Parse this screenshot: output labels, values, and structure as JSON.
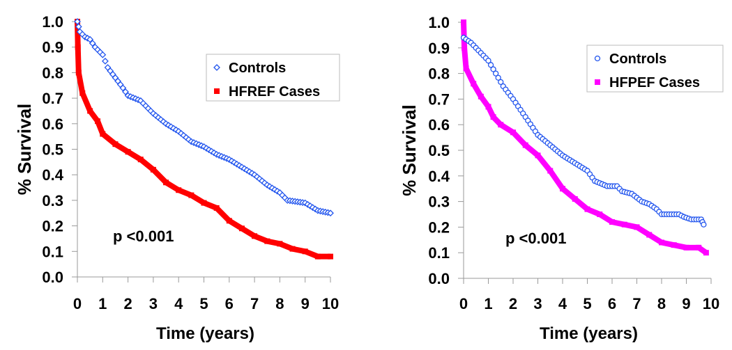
{
  "chart_data": [
    {
      "type": "line",
      "title": "",
      "xlabel": "Time (years)",
      "ylabel": "% Survival",
      "xlim": [
        0,
        10
      ],
      "ylim": [
        0,
        1.0
      ],
      "xticks": [
        "0",
        "1",
        "2",
        "3",
        "4",
        "5",
        "6",
        "7",
        "8",
        "9",
        "10"
      ],
      "yticks": [
        "0.0",
        "0.1",
        "0.2",
        "0.3",
        "0.4",
        "0.5",
        "0.6",
        "0.7",
        "0.8",
        "0.9",
        "1.0"
      ],
      "grid": false,
      "legend_position": "top-right",
      "annotation": "p <0.001",
      "series": [
        {
          "name": "Controls",
          "marker": "diamond-open",
          "color": "#2255ee",
          "x": [
            0,
            0.1,
            0.3,
            0.5,
            0.7,
            1,
            1.2,
            1.5,
            1.8,
            2,
            2.5,
            3,
            3.5,
            4,
            4.5,
            5,
            5.5,
            6,
            6.5,
            7,
            7.5,
            8,
            8.3,
            9,
            9.5,
            10
          ],
          "y": [
            1.0,
            0.96,
            0.94,
            0.93,
            0.9,
            0.87,
            0.82,
            0.78,
            0.74,
            0.71,
            0.69,
            0.64,
            0.6,
            0.57,
            0.53,
            0.51,
            0.48,
            0.46,
            0.43,
            0.4,
            0.36,
            0.33,
            0.3,
            0.29,
            0.26,
            0.25
          ]
        },
        {
          "name": "HFREF Cases",
          "marker": "square-filled",
          "color": "#ff0000",
          "x": [
            0,
            0.02,
            0.05,
            0.2,
            0.5,
            0.8,
            1,
            1.5,
            2,
            2.5,
            3,
            3.5,
            4,
            4.5,
            5,
            5.5,
            6,
            6.5,
            7,
            7.5,
            8,
            8.5,
            9,
            9.5,
            10
          ],
          "y": [
            1.0,
            0.9,
            0.8,
            0.72,
            0.65,
            0.61,
            0.56,
            0.52,
            0.49,
            0.46,
            0.42,
            0.37,
            0.34,
            0.32,
            0.29,
            0.27,
            0.22,
            0.19,
            0.16,
            0.14,
            0.13,
            0.11,
            0.1,
            0.08,
            0.08
          ]
        }
      ]
    },
    {
      "type": "line",
      "title": "",
      "xlabel": "Time (years)",
      "ylabel": "% Survival",
      "xlim": [
        0,
        10
      ],
      "ylim": [
        0,
        1.0
      ],
      "xticks": [
        "0",
        "1",
        "2",
        "3",
        "4",
        "5",
        "6",
        "7",
        "8",
        "9",
        "10"
      ],
      "yticks": [
        "0.0",
        "0.1",
        "0.2",
        "0.3",
        "0.4",
        "0.5",
        "0.6",
        "0.7",
        "0.8",
        "0.9",
        "1.0"
      ],
      "grid": false,
      "legend_position": "top-right",
      "annotation": "p <0.001",
      "series": [
        {
          "name": "Controls",
          "marker": "circle-open",
          "color": "#2255ee",
          "x": [
            0,
            0.3,
            0.6,
            1,
            1.3,
            1.6,
            2,
            2.5,
            3,
            3.5,
            4,
            4.5,
            5,
            5.3,
            5.8,
            6.2,
            6.4,
            6.8,
            7.2,
            7.5,
            7.8,
            8,
            8.7,
            8.9,
            9.2,
            9.6,
            9.7
          ],
          "y": [
            0.94,
            0.92,
            0.89,
            0.85,
            0.8,
            0.75,
            0.7,
            0.63,
            0.56,
            0.52,
            0.48,
            0.45,
            0.42,
            0.38,
            0.36,
            0.36,
            0.34,
            0.33,
            0.3,
            0.29,
            0.27,
            0.25,
            0.25,
            0.24,
            0.23,
            0.23,
            0.21
          ]
        },
        {
          "name": "HFPEF Cases",
          "marker": "square-filled",
          "color": "#ff00ff",
          "x": [
            0,
            0.03,
            0.1,
            0.4,
            0.7,
            1,
            1.2,
            1.5,
            2,
            2.5,
            3,
            3.5,
            4,
            4.5,
            5,
            5.5,
            6,
            6.5,
            7,
            7.5,
            8,
            8.5,
            9,
            9.5,
            9.8
          ],
          "y": [
            1.0,
            0.9,
            0.82,
            0.76,
            0.71,
            0.67,
            0.63,
            0.6,
            0.57,
            0.52,
            0.48,
            0.42,
            0.35,
            0.31,
            0.27,
            0.25,
            0.22,
            0.21,
            0.2,
            0.17,
            0.14,
            0.13,
            0.12,
            0.12,
            0.1
          ]
        }
      ]
    }
  ]
}
